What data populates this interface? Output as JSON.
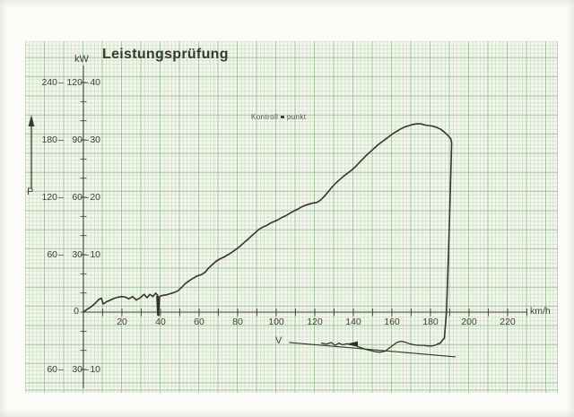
{
  "header": {
    "title": "Leistungsprüfung"
  },
  "labels": {
    "p": "P",
    "v": "V"
  },
  "legend": {
    "pre": "Kontroll",
    "post": "punkt"
  },
  "axes": {
    "y_unit": "kW",
    "x_unit": "km/h",
    "y_rows": [
      {
        "p": 40,
        "cols": [
          "240",
          "120",
          "40"
        ]
      },
      {
        "p": 30,
        "cols": [
          "180",
          "90",
          "30"
        ]
      },
      {
        "p": 20,
        "cols": [
          "120",
          "60",
          "20"
        ]
      },
      {
        "p": 10,
        "cols": [
          "60",
          "30",
          "10"
        ]
      },
      {
        "p": 0,
        "cols": [
          "0"
        ]
      },
      {
        "p": -10,
        "cols": [
          "60",
          "30",
          "10"
        ]
      }
    ],
    "x_ticks": [
      "20",
      "40",
      "60",
      "80",
      "100",
      "120",
      "140",
      "160",
      "180",
      "200",
      "220"
    ],
    "x_minor_step": 10,
    "x_minor_max": 230
  },
  "colors": {
    "ink": "#35352d",
    "grid_major": "#78a573",
    "grid_minor": "#96c391",
    "paper": "#f5f7ee"
  },
  "chart_data": {
    "type": "line",
    "title": "Leistungsprüfung",
    "xlabel": "km/h",
    "ylabel": "kW",
    "x_range": [
      0,
      230
    ],
    "y_scales": {
      "col1": [
        240,
        180,
        120,
        60,
        0,
        -60
      ],
      "col2": [
        120,
        90,
        60,
        30,
        0,
        -30
      ],
      "col3_kW": [
        40,
        30,
        20,
        10,
        0,
        -10
      ]
    },
    "grid": true,
    "annotations": [
      "Kontroll ▪ punkt",
      "P",
      "V"
    ],
    "series": [
      {
        "name": "P power curve",
        "role": "power",
        "unit": "kW (0–40 scale)",
        "points": [
          [
            0,
            0
          ],
          [
            2,
            0.5
          ],
          [
            4,
            0.9
          ],
          [
            6,
            1.5
          ],
          [
            8,
            2.2
          ],
          [
            9.3,
            2.4
          ],
          [
            10.3,
            1.4
          ],
          [
            12,
            1.8
          ],
          [
            14,
            2.1
          ],
          [
            16,
            2.4
          ],
          [
            18,
            2.6
          ],
          [
            20,
            2.7
          ],
          [
            22,
            2.6
          ],
          [
            23.5,
            2.3
          ],
          [
            25.5,
            2.7
          ],
          [
            27.5,
            2.1
          ],
          [
            29.5,
            2.5
          ],
          [
            31.5,
            3.1
          ],
          [
            33,
            2.5
          ],
          [
            34.5,
            3.1
          ],
          [
            36,
            2.7
          ],
          [
            37.5,
            3.3
          ],
          [
            38.5,
            2.9
          ],
          [
            39,
            -0.6
          ],
          [
            39.5,
            2.7
          ],
          [
            41,
            2.9
          ],
          [
            43,
            3.0
          ],
          [
            45,
            3.2
          ],
          [
            47,
            3.4
          ],
          [
            49,
            3.7
          ],
          [
            51,
            4.3
          ],
          [
            53,
            5.0
          ],
          [
            55,
            5.5
          ],
          [
            57,
            5.9
          ],
          [
            59,
            6.3
          ],
          [
            61,
            6.5
          ],
          [
            63,
            6.9
          ],
          [
            65,
            7.7
          ],
          [
            67,
            8.3
          ],
          [
            69,
            8.9
          ],
          [
            71,
            9.3
          ],
          [
            73,
            9.6
          ],
          [
            75,
            10.0
          ],
          [
            77,
            10.4
          ],
          [
            79,
            10.9
          ],
          [
            81,
            11.4
          ],
          [
            83,
            12.0
          ],
          [
            85,
            12.6
          ],
          [
            87,
            13.2
          ],
          [
            89,
            13.8
          ],
          [
            91,
            14.4
          ],
          [
            93,
            14.8
          ],
          [
            95,
            15.1
          ],
          [
            97,
            15.5
          ],
          [
            99,
            15.8
          ],
          [
            101,
            16.1
          ],
          [
            103,
            16.5
          ],
          [
            105,
            16.8
          ],
          [
            107,
            17.2
          ],
          [
            109,
            17.6
          ],
          [
            111,
            17.9
          ],
          [
            113,
            18.3
          ],
          [
            115,
            18.6
          ],
          [
            117,
            18.8
          ],
          [
            119,
            19.0
          ],
          [
            121,
            19.1
          ],
          [
            123,
            19.5
          ],
          [
            125,
            20.2
          ],
          [
            127,
            21.0
          ],
          [
            129,
            21.8
          ],
          [
            131,
            22.5
          ],
          [
            133,
            23.1
          ],
          [
            135,
            23.7
          ],
          [
            137,
            24.2
          ],
          [
            139,
            24.7
          ],
          [
            141,
            25.3
          ],
          [
            143,
            26.0
          ],
          [
            145,
            26.7
          ],
          [
            147,
            27.4
          ],
          [
            149,
            28.0
          ],
          [
            151,
            28.6
          ],
          [
            153,
            29.2
          ],
          [
            155,
            29.7
          ],
          [
            157,
            30.2
          ],
          [
            159,
            30.7
          ],
          [
            161,
            31.2
          ],
          [
            163,
            31.6
          ],
          [
            165,
            32.0
          ],
          [
            167,
            32.3
          ],
          [
            169,
            32.5
          ],
          [
            171,
            32.7
          ],
          [
            173,
            32.8
          ],
          [
            175,
            32.8
          ],
          [
            177,
            32.6
          ],
          [
            179,
            32.5
          ],
          [
            181,
            32.4
          ],
          [
            183,
            32.2
          ],
          [
            185,
            31.9
          ],
          [
            187,
            31.4
          ],
          [
            189,
            30.8
          ],
          [
            190.5,
            30.2
          ],
          [
            191,
            29.5
          ],
          [
            190.2,
            20
          ],
          [
            189.3,
            10
          ],
          [
            188.3,
            0
          ],
          [
            187.2,
            -4.5
          ],
          [
            185,
            -5.4
          ],
          [
            183.6,
            -5.6
          ]
        ]
      },
      {
        "name": "V speed trace",
        "role": "speed",
        "unit": "plotted below zero line",
        "points": [
          [
            123.5,
            -5.4
          ],
          [
            126,
            -5.6
          ],
          [
            128.5,
            -5.3
          ],
          [
            130.5,
            -5.8
          ],
          [
            132.5,
            -5.4
          ],
          [
            134.5,
            -5.7
          ],
          [
            136.5,
            -5.5
          ],
          [
            139,
            -5.7
          ],
          [
            141.5,
            -5.9
          ],
          [
            144,
            -6.2
          ],
          [
            146.5,
            -6.5
          ],
          [
            149,
            -6.7
          ],
          [
            151.5,
            -6.9
          ],
          [
            154,
            -7.0
          ],
          [
            156.5,
            -6.8
          ],
          [
            158.5,
            -6.3
          ],
          [
            160.5,
            -5.8
          ],
          [
            162.5,
            -5.3
          ],
          [
            164.5,
            -5.1
          ],
          [
            166.5,
            -5.2
          ],
          [
            169,
            -5.5
          ],
          [
            171.5,
            -5.7
          ],
          [
            174,
            -5.8
          ],
          [
            176.5,
            -5.8
          ],
          [
            179,
            -5.9
          ],
          [
            181,
            -5.9
          ],
          [
            183,
            -5.7
          ],
          [
            184.3,
            -5.5
          ]
        ]
      },
      {
        "name": "V reference line",
        "role": "ref",
        "points": [
          [
            106.8,
            -5.3
          ],
          [
            192.8,
            -7.8
          ]
        ]
      }
    ]
  }
}
